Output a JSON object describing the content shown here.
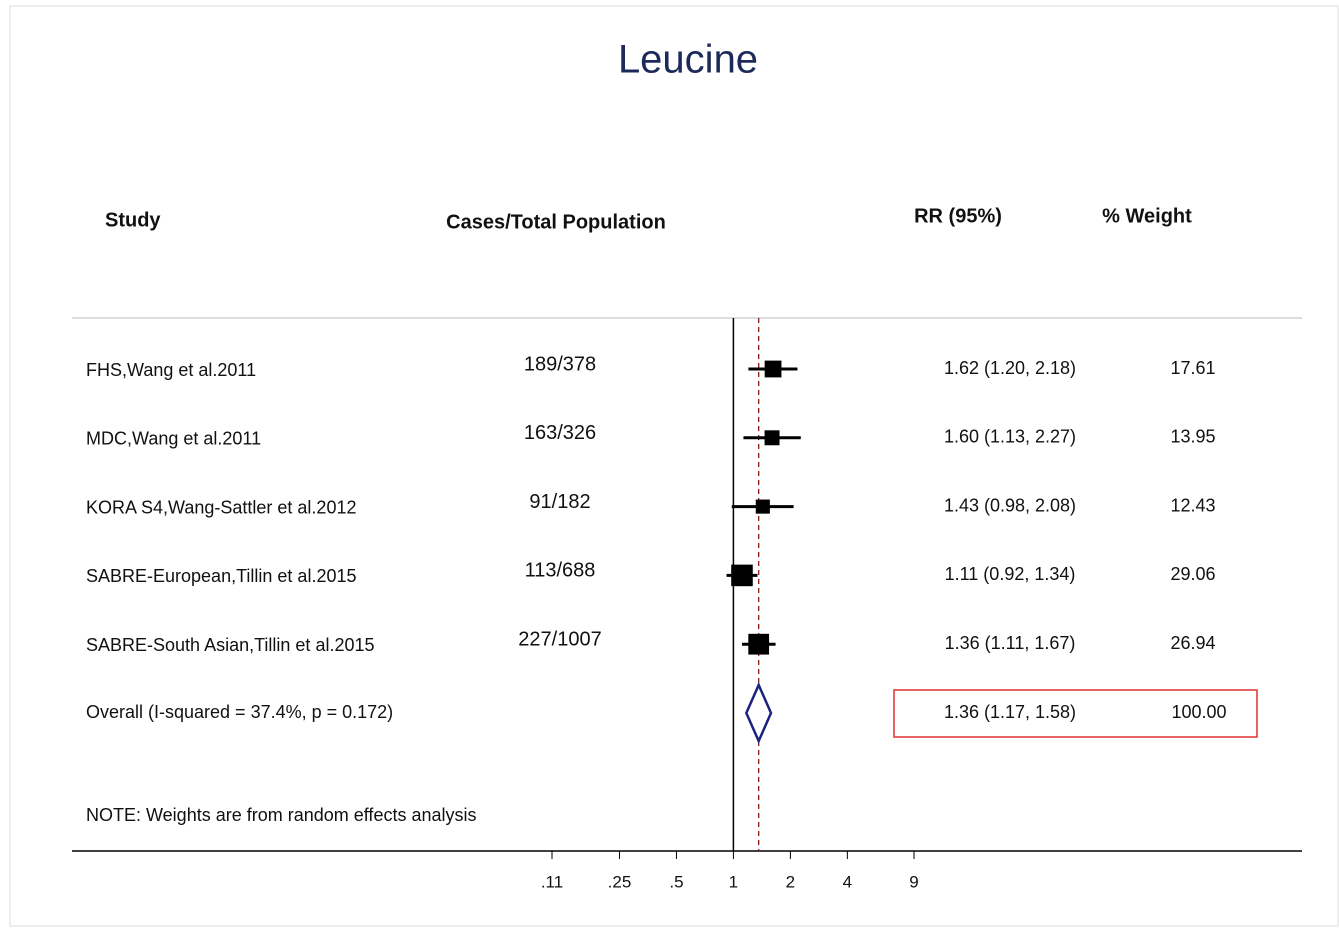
{
  "chart_data": {
    "type": "forest",
    "title": "Leucine",
    "headers": {
      "study": "Study",
      "cases": "Cases/Total Population",
      "rr": "RR (95%)",
      "weight": "% Weight"
    },
    "studies": [
      {
        "name": "FHS,Wang et al.2011",
        "cases": "189/378",
        "rr": 1.62,
        "lower": 1.2,
        "upper": 2.18,
        "rr_label": "1.62 (1.20, 2.18)",
        "weight": 17.61
      },
      {
        "name": "MDC,Wang et al.2011",
        "cases": "163/326",
        "rr": 1.6,
        "lower": 1.13,
        "upper": 2.27,
        "rr_label": "1.60 (1.13, 2.27)",
        "weight": 13.95
      },
      {
        "name": "KORA S4,Wang-Sattler et al.2012",
        "cases": "91/182",
        "rr": 1.43,
        "lower": 0.98,
        "upper": 2.08,
        "rr_label": "1.43 (0.98, 2.08)",
        "weight": 12.43
      },
      {
        "name": "SABRE-European,Tillin et al.2015",
        "cases": "113/688",
        "rr": 1.11,
        "lower": 0.92,
        "upper": 1.34,
        "rr_label": "1.11 (0.92, 1.34)",
        "weight": 29.06
      },
      {
        "name": "SABRE-South Asian,Tillin et al.2015",
        "cases": "227/1007",
        "rr": 1.36,
        "lower": 1.11,
        "upper": 1.67,
        "rr_label": "1.36 (1.11, 1.67)",
        "weight": 26.94
      }
    ],
    "overall": {
      "name": "Overall  (I-squared = 37.4%, p = 0.172)",
      "rr": 1.36,
      "lower": 1.17,
      "upper": 1.58,
      "rr_label": "1.36 (1.17, 1.58)",
      "weight": 100,
      "weight_label": "100.00"
    },
    "note": "NOTE: Weights are from random effects analysis",
    "null_value": 1,
    "xscale": "log",
    "xlim": [
      0.11,
      9
    ],
    "xticks": [
      {
        "value": 0.11,
        "label": ".11"
      },
      {
        "value": 0.25,
        "label": ".25"
      },
      {
        "value": 0.5,
        "label": ".5"
      },
      1,
      2,
      4,
      9
    ],
    "highlight_color": "#e03030",
    "diamond_color": "#1a237e",
    "overall_line_color": "#8b1a1a"
  }
}
